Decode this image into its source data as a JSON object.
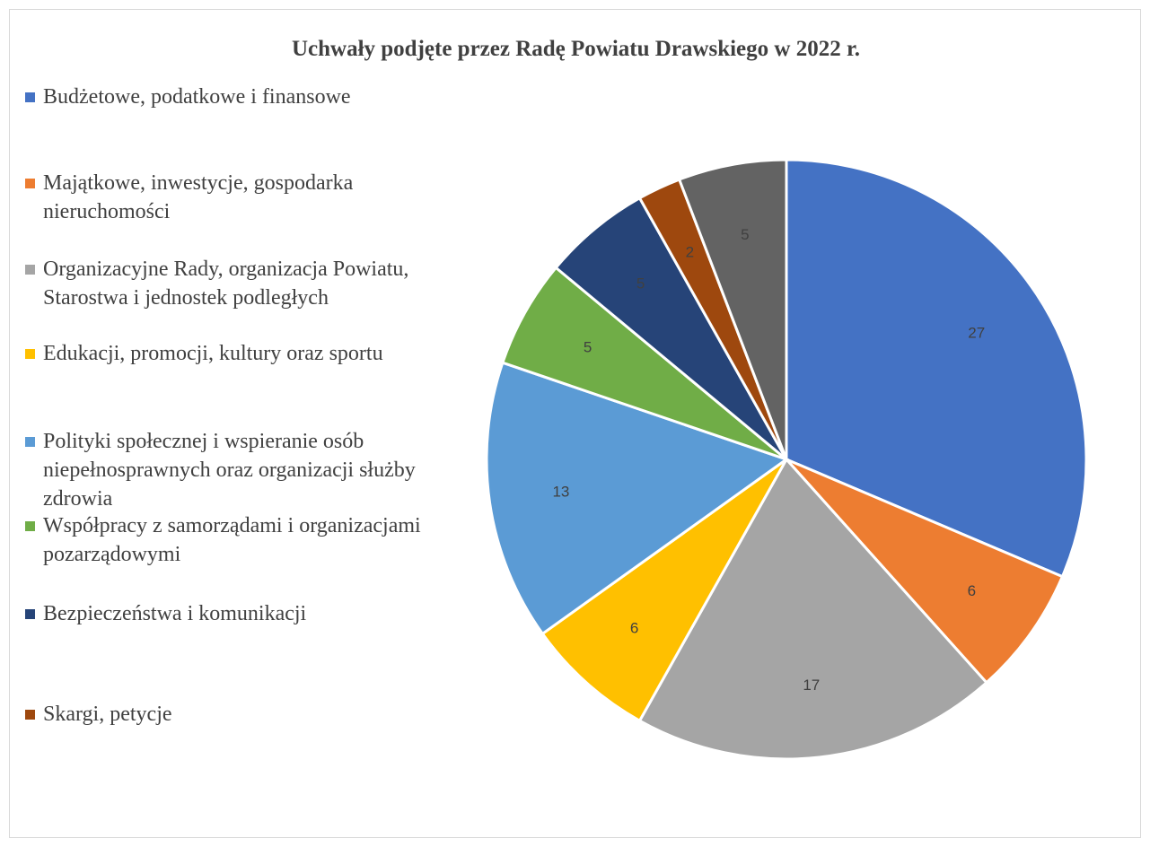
{
  "chart_data": {
    "type": "pie",
    "title": "Uchwały podjęte przez Radę Powiatu Drawskiego w 2022 r.",
    "legend_position": "left",
    "slices": [
      {
        "label": "Budżetowe, podatkowe i finansowe",
        "value": 27,
        "color": "#4472C4"
      },
      {
        "label": "Majątkowe, inwestycje, gospodarka nieruchomości",
        "value": 6,
        "color": "#ED7D31"
      },
      {
        "label": "Organizacyjne Rady, organizacja Powiatu, Starostwa i jednostek podległych",
        "value": 17,
        "color": "#A5A5A5"
      },
      {
        "label": "Edukacji, promocji, kultury oraz sportu",
        "value": 6,
        "color": "#FFC000"
      },
      {
        "label": "Polityki społecznej i wspieranie osób niepełnosprawnych oraz organizacji służby zdrowia",
        "value": 13,
        "color": "#5B9BD5"
      },
      {
        "label": "Współpracy z samorządami i organizacjami pozarządowymi",
        "value": 5,
        "color": "#70AD47"
      },
      {
        "label": "Bezpieczeństwa i komunikacji",
        "value": 5,
        "color": "#264478"
      },
      {
        "label": "Skargi, petycje",
        "value": 2,
        "color": "#9E480E"
      },
      {
        "label": "",
        "value": 5,
        "color": "#636363"
      }
    ]
  }
}
